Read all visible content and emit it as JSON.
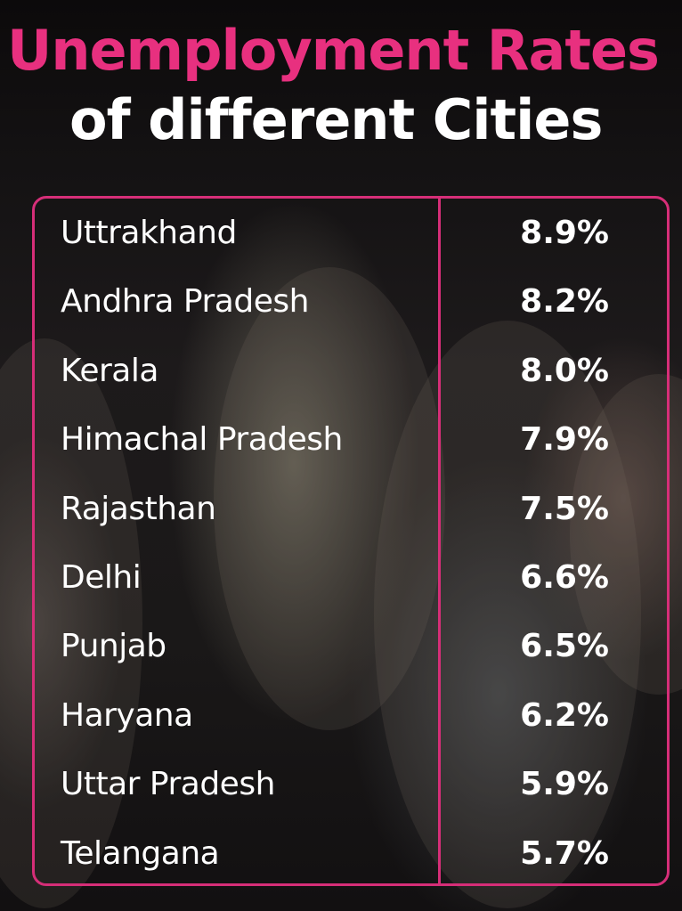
{
  "title": {
    "line1": "Unemployment Rates",
    "line2": "of different Cities"
  },
  "colors": {
    "accent": "#e8307f",
    "border": "#d62e78",
    "text": "#ffffff",
    "background": "#141213"
  },
  "chart_data": {
    "type": "table",
    "title": "Unemployment Rates of different Cities",
    "categories": [
      "Uttrakhand",
      "Andhra Pradesh",
      "Kerala",
      "Himachal Pradesh",
      "Rajasthan",
      "Delhi",
      "Punjab",
      "Haryana",
      "Uttar Pradesh",
      "Telangana"
    ],
    "values": [
      8.9,
      8.2,
      8.0,
      7.9,
      7.5,
      6.6,
      6.5,
      6.2,
      5.9,
      5.7
    ],
    "value_labels": [
      "8.9%",
      "8.2%",
      "8.0%",
      "7.9%",
      "7.5%",
      "6.6%",
      "6.5%",
      "6.2%",
      "5.9%",
      "5.7%"
    ]
  }
}
